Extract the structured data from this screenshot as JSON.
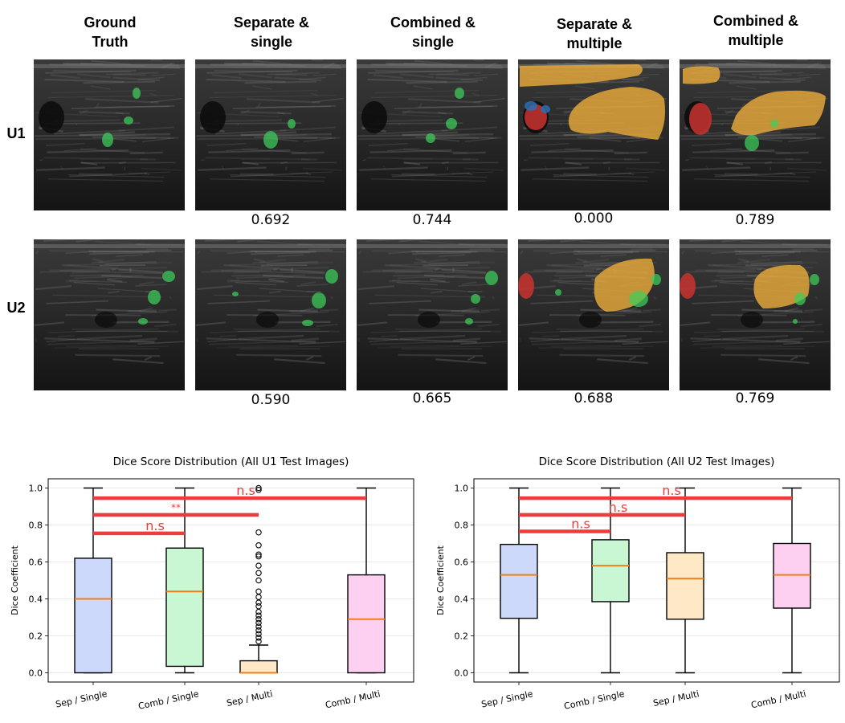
{
  "columns": [
    "Ground\nTruth",
    "Separate &\nsingle",
    "Combined &\nsingle",
    "Separate &\nmultiple",
    "Combined &\nmultiple"
  ],
  "rows": [
    {
      "label": "U1",
      "scores": [
        "",
        "0.692",
        "0.744",
        "0.000",
        "0.789"
      ]
    },
    {
      "label": "U2",
      "scores": [
        "",
        "0.590",
        "0.665",
        "0.688",
        "0.769"
      ]
    }
  ],
  "colors": {
    "nodule_green": "#3ccf5a",
    "gland_orange": "#e8a93a",
    "artery_red": "#c8332f",
    "vessel_blue": "#2d6fb3",
    "median_orange": "#f07f1a",
    "sig_red": "#ee3b3b"
  },
  "chart_data": [
    {
      "type": "box",
      "title": "Dice Score Distribution (All U1 Test Images)",
      "xlabel": "",
      "ylabel": "Dice Coefficient",
      "ylim": [
        -0.05,
        1.05
      ],
      "yticks": [
        "0.0",
        "0.2",
        "0.4",
        "0.6",
        "0.8",
        "1.0"
      ],
      "grid": true,
      "categories": [
        "Sep / Single",
        "Comb / Single",
        "Sep / Multi",
        "Comb / Multi"
      ],
      "box_colors": [
        "#cdd9fb",
        "#c9f7d4",
        "#ffe8c6",
        "#fdd0f2"
      ],
      "boxes": [
        {
          "min": 0.0,
          "q1": 0.0,
          "median": 0.4,
          "q3": 0.62,
          "max": 1.0,
          "outliers": []
        },
        {
          "min": 0.0,
          "q1": 0.035,
          "median": 0.44,
          "q3": 0.675,
          "max": 1.0,
          "outliers": []
        },
        {
          "min": 0.0,
          "q1": 0.0,
          "median": 0.0,
          "q3": 0.065,
          "max": 0.15,
          "outliers": [
            0.17,
            0.19,
            0.21,
            0.23,
            0.25,
            0.27,
            0.29,
            0.31,
            0.33,
            0.36,
            0.38,
            0.41,
            0.44,
            0.5,
            0.54,
            0.58,
            0.63,
            0.64,
            0.69,
            0.76,
            0.99,
            1.0
          ]
        },
        {
          "min": 0.0,
          "q1": 0.0,
          "median": 0.29,
          "q3": 0.53,
          "max": 1.0,
          "outliers": []
        }
      ],
      "significance": [
        {
          "from": 0,
          "to": 1,
          "level": 0.755,
          "label": "n.s"
        },
        {
          "from": 0,
          "to": 2,
          "level": 0.855,
          "label": "**"
        },
        {
          "from": 0,
          "to": 3,
          "level": 0.945,
          "label": "n.s"
        }
      ]
    },
    {
      "type": "box",
      "title": "Dice Score Distribution (All U2 Test Images)",
      "xlabel": "",
      "ylabel": "Dice Coefficient",
      "ylim": [
        -0.05,
        1.05
      ],
      "yticks": [
        "0.0",
        "0.2",
        "0.4",
        "0.6",
        "0.8",
        "1.0"
      ],
      "grid": true,
      "categories": [
        "Sep / Single",
        "Comb / Single",
        "Sep / Multi",
        "Comb / Multi"
      ],
      "box_colors": [
        "#cdd9fb",
        "#c9f7d4",
        "#ffe8c6",
        "#fdd0f2"
      ],
      "boxes": [
        {
          "min": 0.0,
          "q1": 0.295,
          "median": 0.53,
          "q3": 0.695,
          "max": 1.0,
          "outliers": []
        },
        {
          "min": 0.0,
          "q1": 0.385,
          "median": 0.58,
          "q3": 0.72,
          "max": 1.0,
          "outliers": []
        },
        {
          "min": 0.0,
          "q1": 0.29,
          "median": 0.51,
          "q3": 0.65,
          "max": 1.0,
          "outliers": []
        },
        {
          "min": 0.0,
          "q1": 0.35,
          "median": 0.53,
          "q3": 0.7,
          "max": 1.0,
          "outliers": []
        }
      ],
      "significance": [
        {
          "from": 0,
          "to": 1,
          "level": 0.765,
          "label": "n.s"
        },
        {
          "from": 0,
          "to": 2,
          "level": 0.855,
          "label": "n.s"
        },
        {
          "from": 0,
          "to": 3,
          "level": 0.945,
          "label": "n.s"
        }
      ]
    }
  ]
}
